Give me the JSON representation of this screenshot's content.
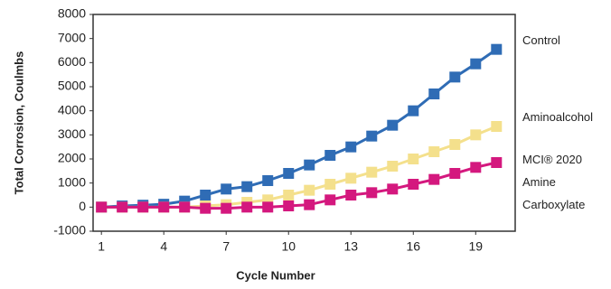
{
  "chart_data": {
    "type": "line",
    "ylabel": "Total Corrosion, Coulmbs",
    "xlabel": "Cycle Number",
    "x": [
      1,
      2,
      3,
      4,
      5,
      6,
      7,
      8,
      9,
      10,
      11,
      12,
      13,
      14,
      15,
      16,
      17,
      18,
      19,
      20
    ],
    "xlim": [
      0.6,
      20.9
    ],
    "xticks": [
      1,
      4,
      7,
      10,
      13,
      16,
      19
    ],
    "ylim": [
      -1000,
      8000
    ],
    "yticks": [
      -1000,
      0,
      1000,
      2000,
      3000,
      4000,
      5000,
      6000,
      7000,
      8000
    ],
    "grid": false,
    "series": [
      {
        "name": "Control",
        "color": "#2f6cb5",
        "values": [
          0,
          50,
          80,
          120,
          250,
          500,
          750,
          850,
          1100,
          1400,
          1750,
          2150,
          2500,
          2950,
          3400,
          4000,
          4700,
          5400,
          5950,
          6550
        ]
      },
      {
        "name": "Aminoalcohol",
        "color": "#f4e08c",
        "values": [
          0,
          0,
          0,
          0,
          0,
          50,
          100,
          200,
          300,
          500,
          700,
          950,
          1200,
          1450,
          1700,
          2000,
          2300,
          2600,
          3000,
          3350
        ]
      },
      {
        "name": "MCI® 2020 Amine Carboxylate",
        "color": "#d4187e",
        "values": [
          0,
          0,
          0,
          0,
          0,
          -50,
          -50,
          0,
          0,
          50,
          100,
          300,
          500,
          600,
          750,
          950,
          1150,
          1400,
          1650,
          1850
        ]
      }
    ]
  }
}
